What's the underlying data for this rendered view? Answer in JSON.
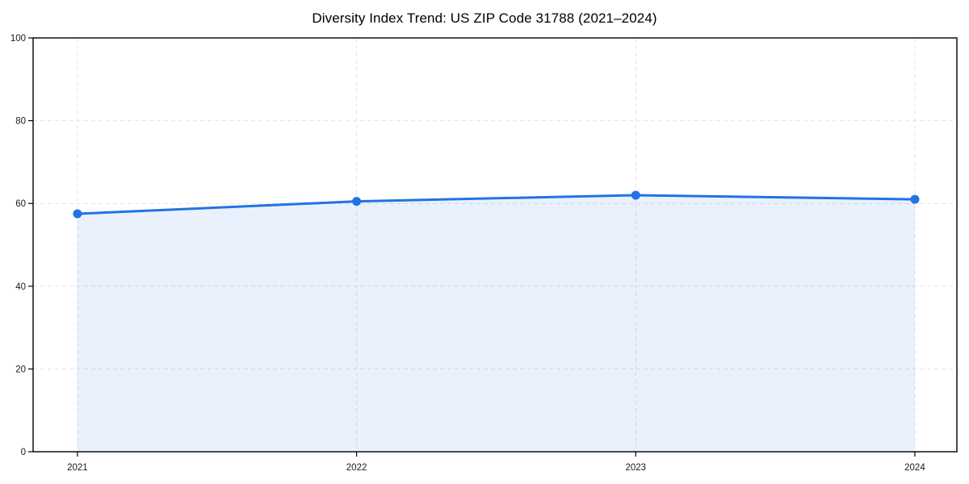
{
  "chart_data": {
    "type": "area",
    "title": "Diversity Index Trend: US ZIP Code 31788 (2021–2024)",
    "categories": [
      "2021",
      "2022",
      "2023",
      "2024"
    ],
    "x": [
      2021,
      2022,
      2023,
      2024
    ],
    "series": [
      {
        "name": "Diversity Index",
        "values": [
          57.5,
          60.5,
          62,
          61
        ]
      }
    ],
    "xlabel": "",
    "ylabel": "",
    "ylim": [
      0,
      100
    ],
    "yticks": [
      0,
      20,
      40,
      60,
      80,
      100
    ],
    "grid": true,
    "grid_style": "dashed",
    "legend": "none",
    "colors": {
      "line": "#2273e3",
      "marker": "#2273e3",
      "fill": "#2273e3",
      "fill_opacity": 0.1,
      "grid": "#e2e2e2",
      "spine": "#000000",
      "tick_label": "#1a1a1a",
      "title": "#000000",
      "background": "#ffffff"
    }
  }
}
